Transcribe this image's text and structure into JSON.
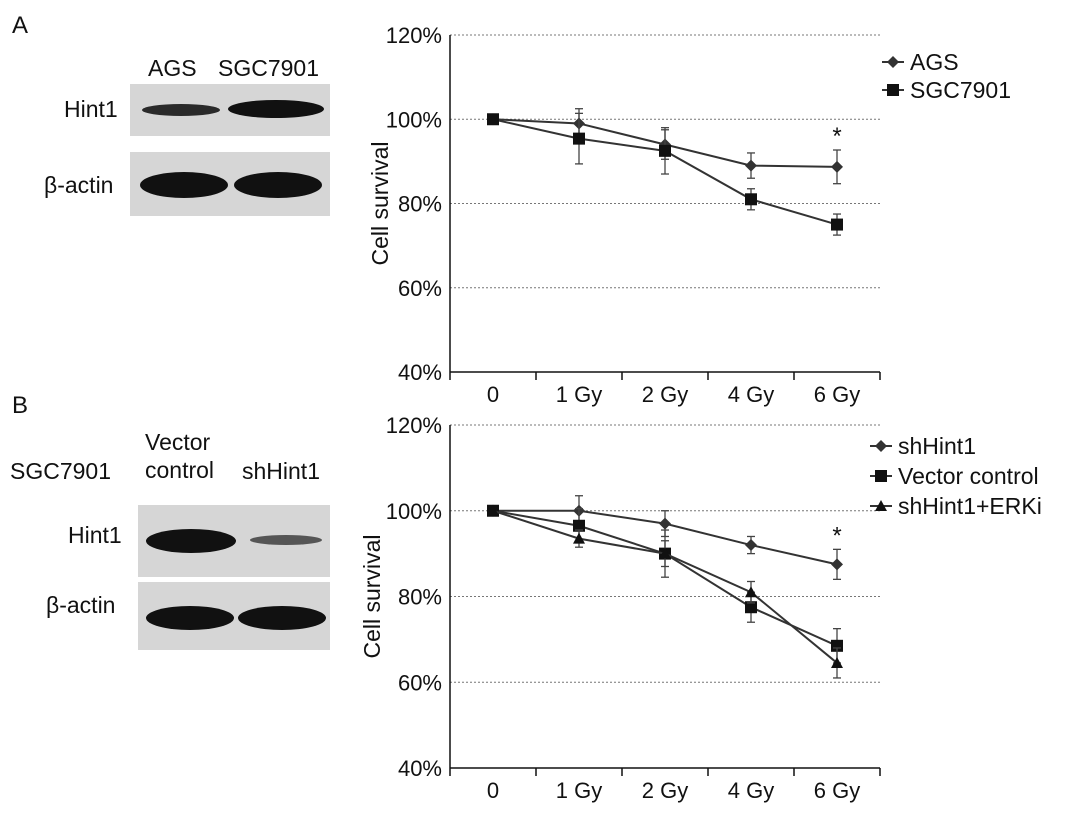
{
  "panels": [
    {
      "letter": "A",
      "blot": {
        "column_labels": [
          "AGS",
          "SGC7901"
        ],
        "row_labels": [
          "Hint1",
          "β-actin"
        ],
        "band_strength": [
          [
            0.55,
            0.9
          ],
          [
            0.9,
            0.9
          ]
        ]
      }
    },
    {
      "letter": "B",
      "blot": {
        "cell_line": "SGC7901",
        "column_labels": [
          "Vector\ncontrol",
          "shHint1"
        ],
        "row_labels": [
          "Hint1",
          "β-actin"
        ],
        "band_strength": [
          [
            0.95,
            0.35
          ],
          [
            0.95,
            0.95
          ]
        ]
      }
    }
  ],
  "chart_data": [
    {
      "type": "line",
      "categories": [
        "0",
        "1 Gy",
        "2 Gy",
        "4 Gy",
        "6 Gy"
      ],
      "ylabel": "Cell survival",
      "ylim": [
        40,
        120
      ],
      "yticks": [
        "40%",
        "60%",
        "80%",
        "100%",
        "120%"
      ],
      "grid": true,
      "legend_position": "top-right",
      "series": [
        {
          "name": "AGS",
          "marker": "diamond",
          "values": [
            100,
            99,
            94,
            89,
            88.7
          ],
          "errors": [
            0,
            3.5,
            3.5,
            3,
            4
          ]
        },
        {
          "name": "SGC7901",
          "marker": "square",
          "values": [
            100,
            95.4,
            92.5,
            81,
            75
          ],
          "errors": [
            0,
            6,
            5.5,
            2.5,
            2.5
          ]
        }
      ],
      "annotations": [
        {
          "text": "*",
          "category": "6 Gy"
        }
      ]
    },
    {
      "type": "line",
      "categories": [
        "0",
        "1 Gy",
        "2 Gy",
        "4 Gy",
        "6 Gy"
      ],
      "ylabel": "Cell survival",
      "ylim": [
        40,
        120
      ],
      "yticks": [
        "40%",
        "60%",
        "80%",
        "100%",
        "120%"
      ],
      "grid": true,
      "legend_position": "top-right",
      "series": [
        {
          "name": "shHint1",
          "marker": "diamond",
          "values": [
            100,
            100,
            97,
            92,
            87.5
          ],
          "errors": [
            0,
            3.5,
            3,
            2,
            3.5
          ]
        },
        {
          "name": "Vector control",
          "marker": "square",
          "values": [
            100,
            96.5,
            90,
            77.5,
            68.5
          ],
          "errors": [
            0,
            4,
            5.5,
            3.5,
            4
          ]
        },
        {
          "name": "shHint1+ERKi",
          "marker": "triangle",
          "values": [
            100,
            93.5,
            90,
            81,
            64.5
          ],
          "errors": [
            0,
            2,
            3,
            2.5,
            3.5
          ]
        }
      ],
      "annotations": [
        {
          "text": "*",
          "category": "6 Gy"
        }
      ]
    }
  ]
}
